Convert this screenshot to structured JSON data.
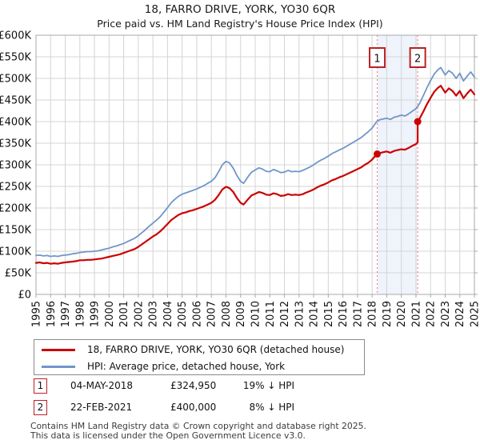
{
  "title": "18, FARRO DRIVE, YORK, YO30 6QR",
  "subtitle": "Price paid vs. HM Land Registry's House Price Index (HPI)",
  "chart_data": {
    "type": "line",
    "unit": "GBP thousands",
    "x_min": 1995,
    "x_max": 2025,
    "ylim": [
      0,
      600
    ],
    "x_ticks": [
      1995,
      1996,
      1997,
      1998,
      1999,
      2000,
      2001,
      2002,
      2003,
      2004,
      2005,
      2006,
      2007,
      2008,
      2009,
      2010,
      2011,
      2012,
      2013,
      2014,
      2015,
      2016,
      2017,
      2018,
      2019,
      2020,
      2021,
      2022,
      2023,
      2024,
      2025
    ],
    "y_ticks": [
      {
        "value": 0,
        "label": "£0"
      },
      {
        "value": 50,
        "label": "£50K"
      },
      {
        "value": 100,
        "label": "£100K"
      },
      {
        "value": 150,
        "label": "£150K"
      },
      {
        "value": 200,
        "label": "£200K"
      },
      {
        "value": 250,
        "label": "£250K"
      },
      {
        "value": 300,
        "label": "£300K"
      },
      {
        "value": 350,
        "label": "£350K"
      },
      {
        "value": 400,
        "label": "£400K"
      },
      {
        "value": 450,
        "label": "£450K"
      },
      {
        "value": 500,
        "label": "£500K"
      },
      {
        "value": 550,
        "label": "£550K"
      },
      {
        "value": 600,
        "label": "£600K"
      }
    ],
    "grid_color": "#d4d4d4",
    "border_color": "#a8a8a8",
    "band": {
      "from": 2018.35,
      "to": 2021.12,
      "fill": "#eff3fb",
      "edge_color": "#f28b8b"
    },
    "events": [
      {
        "num": "1",
        "x": 2018.35,
        "y": 324.95
      },
      {
        "num": "2",
        "x": 2021.12,
        "y": 400
      }
    ],
    "event_box_color": "#b92222",
    "series": [
      {
        "name": "HPI: Average price, detached house, York",
        "color": "#7096c8",
        "width": 1.8,
        "points": [
          [
            1995.0,
            90
          ],
          [
            1995.25,
            91
          ],
          [
            1995.5,
            89
          ],
          [
            1995.75,
            90
          ],
          [
            1996.0,
            88
          ],
          [
            1996.25,
            89
          ],
          [
            1996.5,
            88
          ],
          [
            1996.75,
            90
          ],
          [
            1997.0,
            91
          ],
          [
            1997.25,
            92
          ],
          [
            1997.5,
            94
          ],
          [
            1997.75,
            95
          ],
          [
            1998.0,
            97
          ],
          [
            1998.25,
            98
          ],
          [
            1998.5,
            99
          ],
          [
            1998.75,
            99
          ],
          [
            1999.0,
            100
          ],
          [
            1999.25,
            101
          ],
          [
            1999.5,
            103
          ],
          [
            1999.75,
            105
          ],
          [
            2000.0,
            107
          ],
          [
            2000.25,
            110
          ],
          [
            2000.5,
            112
          ],
          [
            2000.75,
            115
          ],
          [
            2001.0,
            118
          ],
          [
            2001.25,
            122
          ],
          [
            2001.5,
            126
          ],
          [
            2001.75,
            130
          ],
          [
            2002.0,
            136
          ],
          [
            2002.25,
            143
          ],
          [
            2002.5,
            150
          ],
          [
            2002.75,
            158
          ],
          [
            2003.0,
            165
          ],
          [
            2003.25,
            172
          ],
          [
            2003.5,
            180
          ],
          [
            2003.75,
            190
          ],
          [
            2004.0,
            201
          ],
          [
            2004.25,
            212
          ],
          [
            2004.5,
            220
          ],
          [
            2004.75,
            227
          ],
          [
            2005.0,
            232
          ],
          [
            2005.25,
            235
          ],
          [
            2005.5,
            238
          ],
          [
            2005.75,
            241
          ],
          [
            2006.0,
            244
          ],
          [
            2006.25,
            248
          ],
          [
            2006.5,
            252
          ],
          [
            2006.75,
            257
          ],
          [
            2007.0,
            262
          ],
          [
            2007.25,
            270
          ],
          [
            2007.5,
            284
          ],
          [
            2007.75,
            300
          ],
          [
            2008.0,
            308
          ],
          [
            2008.25,
            304
          ],
          [
            2008.5,
            292
          ],
          [
            2008.75,
            275
          ],
          [
            2009.0,
            262
          ],
          [
            2009.2,
            257
          ],
          [
            2009.5,
            272
          ],
          [
            2009.75,
            283
          ],
          [
            2010.0,
            288
          ],
          [
            2010.25,
            293
          ],
          [
            2010.5,
            290
          ],
          [
            2010.75,
            285
          ],
          [
            2011.0,
            284
          ],
          [
            2011.25,
            289
          ],
          [
            2011.5,
            286
          ],
          [
            2011.75,
            282
          ],
          [
            2012.0,
            283
          ],
          [
            2012.25,
            287
          ],
          [
            2012.5,
            284
          ],
          [
            2012.75,
            285
          ],
          [
            2013.0,
            284
          ],
          [
            2013.25,
            287
          ],
          [
            2013.5,
            291
          ],
          [
            2013.75,
            295
          ],
          [
            2014.0,
            300
          ],
          [
            2014.25,
            306
          ],
          [
            2014.5,
            311
          ],
          [
            2014.75,
            315
          ],
          [
            2015.0,
            320
          ],
          [
            2015.25,
            326
          ],
          [
            2015.5,
            330
          ],
          [
            2015.75,
            334
          ],
          [
            2016.0,
            338
          ],
          [
            2016.25,
            343
          ],
          [
            2016.5,
            348
          ],
          [
            2016.75,
            353
          ],
          [
            2017.0,
            358
          ],
          [
            2017.25,
            363
          ],
          [
            2017.5,
            370
          ],
          [
            2017.75,
            377
          ],
          [
            2018.0,
            385
          ],
          [
            2018.25,
            397
          ],
          [
            2018.35,
            401
          ],
          [
            2018.5,
            404
          ],
          [
            2018.75,
            406
          ],
          [
            2019.0,
            408
          ],
          [
            2019.25,
            405
          ],
          [
            2019.5,
            410
          ],
          [
            2019.75,
            412
          ],
          [
            2020.0,
            415
          ],
          [
            2020.25,
            413
          ],
          [
            2020.5,
            418
          ],
          [
            2020.75,
            424
          ],
          [
            2021.0,
            430
          ],
          [
            2021.12,
            435
          ],
          [
            2021.25,
            442
          ],
          [
            2021.5,
            460
          ],
          [
            2021.75,
            478
          ],
          [
            2022.0,
            495
          ],
          [
            2022.25,
            510
          ],
          [
            2022.5,
            520
          ],
          [
            2022.7,
            525
          ],
          [
            2023.0,
            508
          ],
          [
            2023.25,
            518
          ],
          [
            2023.5,
            512
          ],
          [
            2023.75,
            500
          ],
          [
            2024.0,
            512
          ],
          [
            2024.25,
            494
          ],
          [
            2024.5,
            505
          ],
          [
            2024.75,
            515
          ],
          [
            2025.0,
            503
          ]
        ]
      },
      {
        "name": "18, FARRO DRIVE, YORK, YO30 6QR (detached house)",
        "color": "#cc0000",
        "width": 2.2,
        "points": [
          [
            1995.0,
            73
          ],
          [
            1995.25,
            74
          ],
          [
            1995.5,
            72
          ],
          [
            1995.75,
            73
          ],
          [
            1996.0,
            71
          ],
          [
            1996.25,
            72
          ],
          [
            1996.5,
            71
          ],
          [
            1996.75,
            73
          ],
          [
            1997.0,
            74
          ],
          [
            1997.25,
            75
          ],
          [
            1997.5,
            76
          ],
          [
            1997.75,
            77
          ],
          [
            1998.0,
            79
          ],
          [
            1998.25,
            79
          ],
          [
            1998.5,
            80
          ],
          [
            1998.75,
            80
          ],
          [
            1999.0,
            81
          ],
          [
            1999.25,
            82
          ],
          [
            1999.5,
            83
          ],
          [
            1999.75,
            85
          ],
          [
            2000.0,
            87
          ],
          [
            2000.25,
            89
          ],
          [
            2000.5,
            91
          ],
          [
            2000.75,
            93
          ],
          [
            2001.0,
            96
          ],
          [
            2001.25,
            99
          ],
          [
            2001.5,
            102
          ],
          [
            2001.75,
            105
          ],
          [
            2002.0,
            110
          ],
          [
            2002.25,
            116
          ],
          [
            2002.5,
            122
          ],
          [
            2002.75,
            128
          ],
          [
            2003.0,
            134
          ],
          [
            2003.25,
            139
          ],
          [
            2003.5,
            146
          ],
          [
            2003.75,
            154
          ],
          [
            2004.0,
            163
          ],
          [
            2004.25,
            172
          ],
          [
            2004.5,
            178
          ],
          [
            2004.75,
            184
          ],
          [
            2005.0,
            188
          ],
          [
            2005.25,
            190
          ],
          [
            2005.5,
            193
          ],
          [
            2005.75,
            195
          ],
          [
            2006.0,
            198
          ],
          [
            2006.25,
            201
          ],
          [
            2006.5,
            204
          ],
          [
            2006.75,
            208
          ],
          [
            2007.0,
            212
          ],
          [
            2007.25,
            219
          ],
          [
            2007.5,
            230
          ],
          [
            2007.75,
            243
          ],
          [
            2008.0,
            249
          ],
          [
            2008.25,
            246
          ],
          [
            2008.5,
            237
          ],
          [
            2008.75,
            223
          ],
          [
            2009.0,
            212
          ],
          [
            2009.2,
            208
          ],
          [
            2009.5,
            220
          ],
          [
            2009.75,
            229
          ],
          [
            2010.0,
            233
          ],
          [
            2010.25,
            237
          ],
          [
            2010.5,
            235
          ],
          [
            2010.75,
            231
          ],
          [
            2011.0,
            230
          ],
          [
            2011.25,
            234
          ],
          [
            2011.5,
            232
          ],
          [
            2011.75,
            228
          ],
          [
            2012.0,
            229
          ],
          [
            2012.25,
            232
          ],
          [
            2012.5,
            230
          ],
          [
            2012.75,
            231
          ],
          [
            2013.0,
            230
          ],
          [
            2013.25,
            232
          ],
          [
            2013.5,
            236
          ],
          [
            2013.75,
            239
          ],
          [
            2014.0,
            243
          ],
          [
            2014.25,
            248
          ],
          [
            2014.5,
            252
          ],
          [
            2014.75,
            255
          ],
          [
            2015.0,
            259
          ],
          [
            2015.25,
            264
          ],
          [
            2015.5,
            267
          ],
          [
            2015.75,
            271
          ],
          [
            2016.0,
            274
          ],
          [
            2016.25,
            278
          ],
          [
            2016.5,
            282
          ],
          [
            2016.75,
            286
          ],
          [
            2017.0,
            290
          ],
          [
            2017.25,
            294
          ],
          [
            2017.5,
            300
          ],
          [
            2017.75,
            305
          ],
          [
            2018.0,
            312
          ],
          [
            2018.25,
            322
          ],
          [
            2018.35,
            324.95
          ],
          [
            2018.5,
            327
          ],
          [
            2018.75,
            329
          ],
          [
            2019.0,
            331
          ],
          [
            2019.25,
            328
          ],
          [
            2019.5,
            332
          ],
          [
            2019.75,
            334
          ],
          [
            2020.0,
            336
          ],
          [
            2020.25,
            335
          ],
          [
            2020.5,
            339
          ],
          [
            2020.75,
            344
          ],
          [
            2021.0,
            348
          ],
          [
            2021.12,
            352
          ],
          [
            2021.12,
            400
          ],
          [
            2021.25,
            407
          ],
          [
            2021.5,
            423
          ],
          [
            2021.75,
            440
          ],
          [
            2022.0,
            455
          ],
          [
            2022.25,
            469
          ],
          [
            2022.5,
            478
          ],
          [
            2022.7,
            483
          ],
          [
            2023.0,
            467
          ],
          [
            2023.25,
            477
          ],
          [
            2023.5,
            471
          ],
          [
            2023.75,
            460
          ],
          [
            2024.0,
            471
          ],
          [
            2024.25,
            454
          ],
          [
            2024.5,
            465
          ],
          [
            2024.75,
            474
          ],
          [
            2025.0,
            463
          ]
        ]
      }
    ]
  },
  "legend": {
    "items": [
      {
        "label": "18, FARRO DRIVE, YORK, YO30 6QR (detached house)",
        "color": "#cc0000"
      },
      {
        "label": "HPI: Average price, detached house, York",
        "color": "#7096c8"
      }
    ]
  },
  "annotations": [
    {
      "num": "1",
      "date": "04-MAY-2018",
      "price": "£324,950",
      "vs_hpi": "19% ↓ HPI"
    },
    {
      "num": "2",
      "date": "22-FEB-2021",
      "price": "£400,000",
      "vs_hpi": "8% ↓ HPI"
    }
  ],
  "footer": {
    "line1": "Contains HM Land Registry data © Crown copyright and database right 2025.",
    "line2": "This data is licensed under the Open Government Licence v3.0."
  }
}
